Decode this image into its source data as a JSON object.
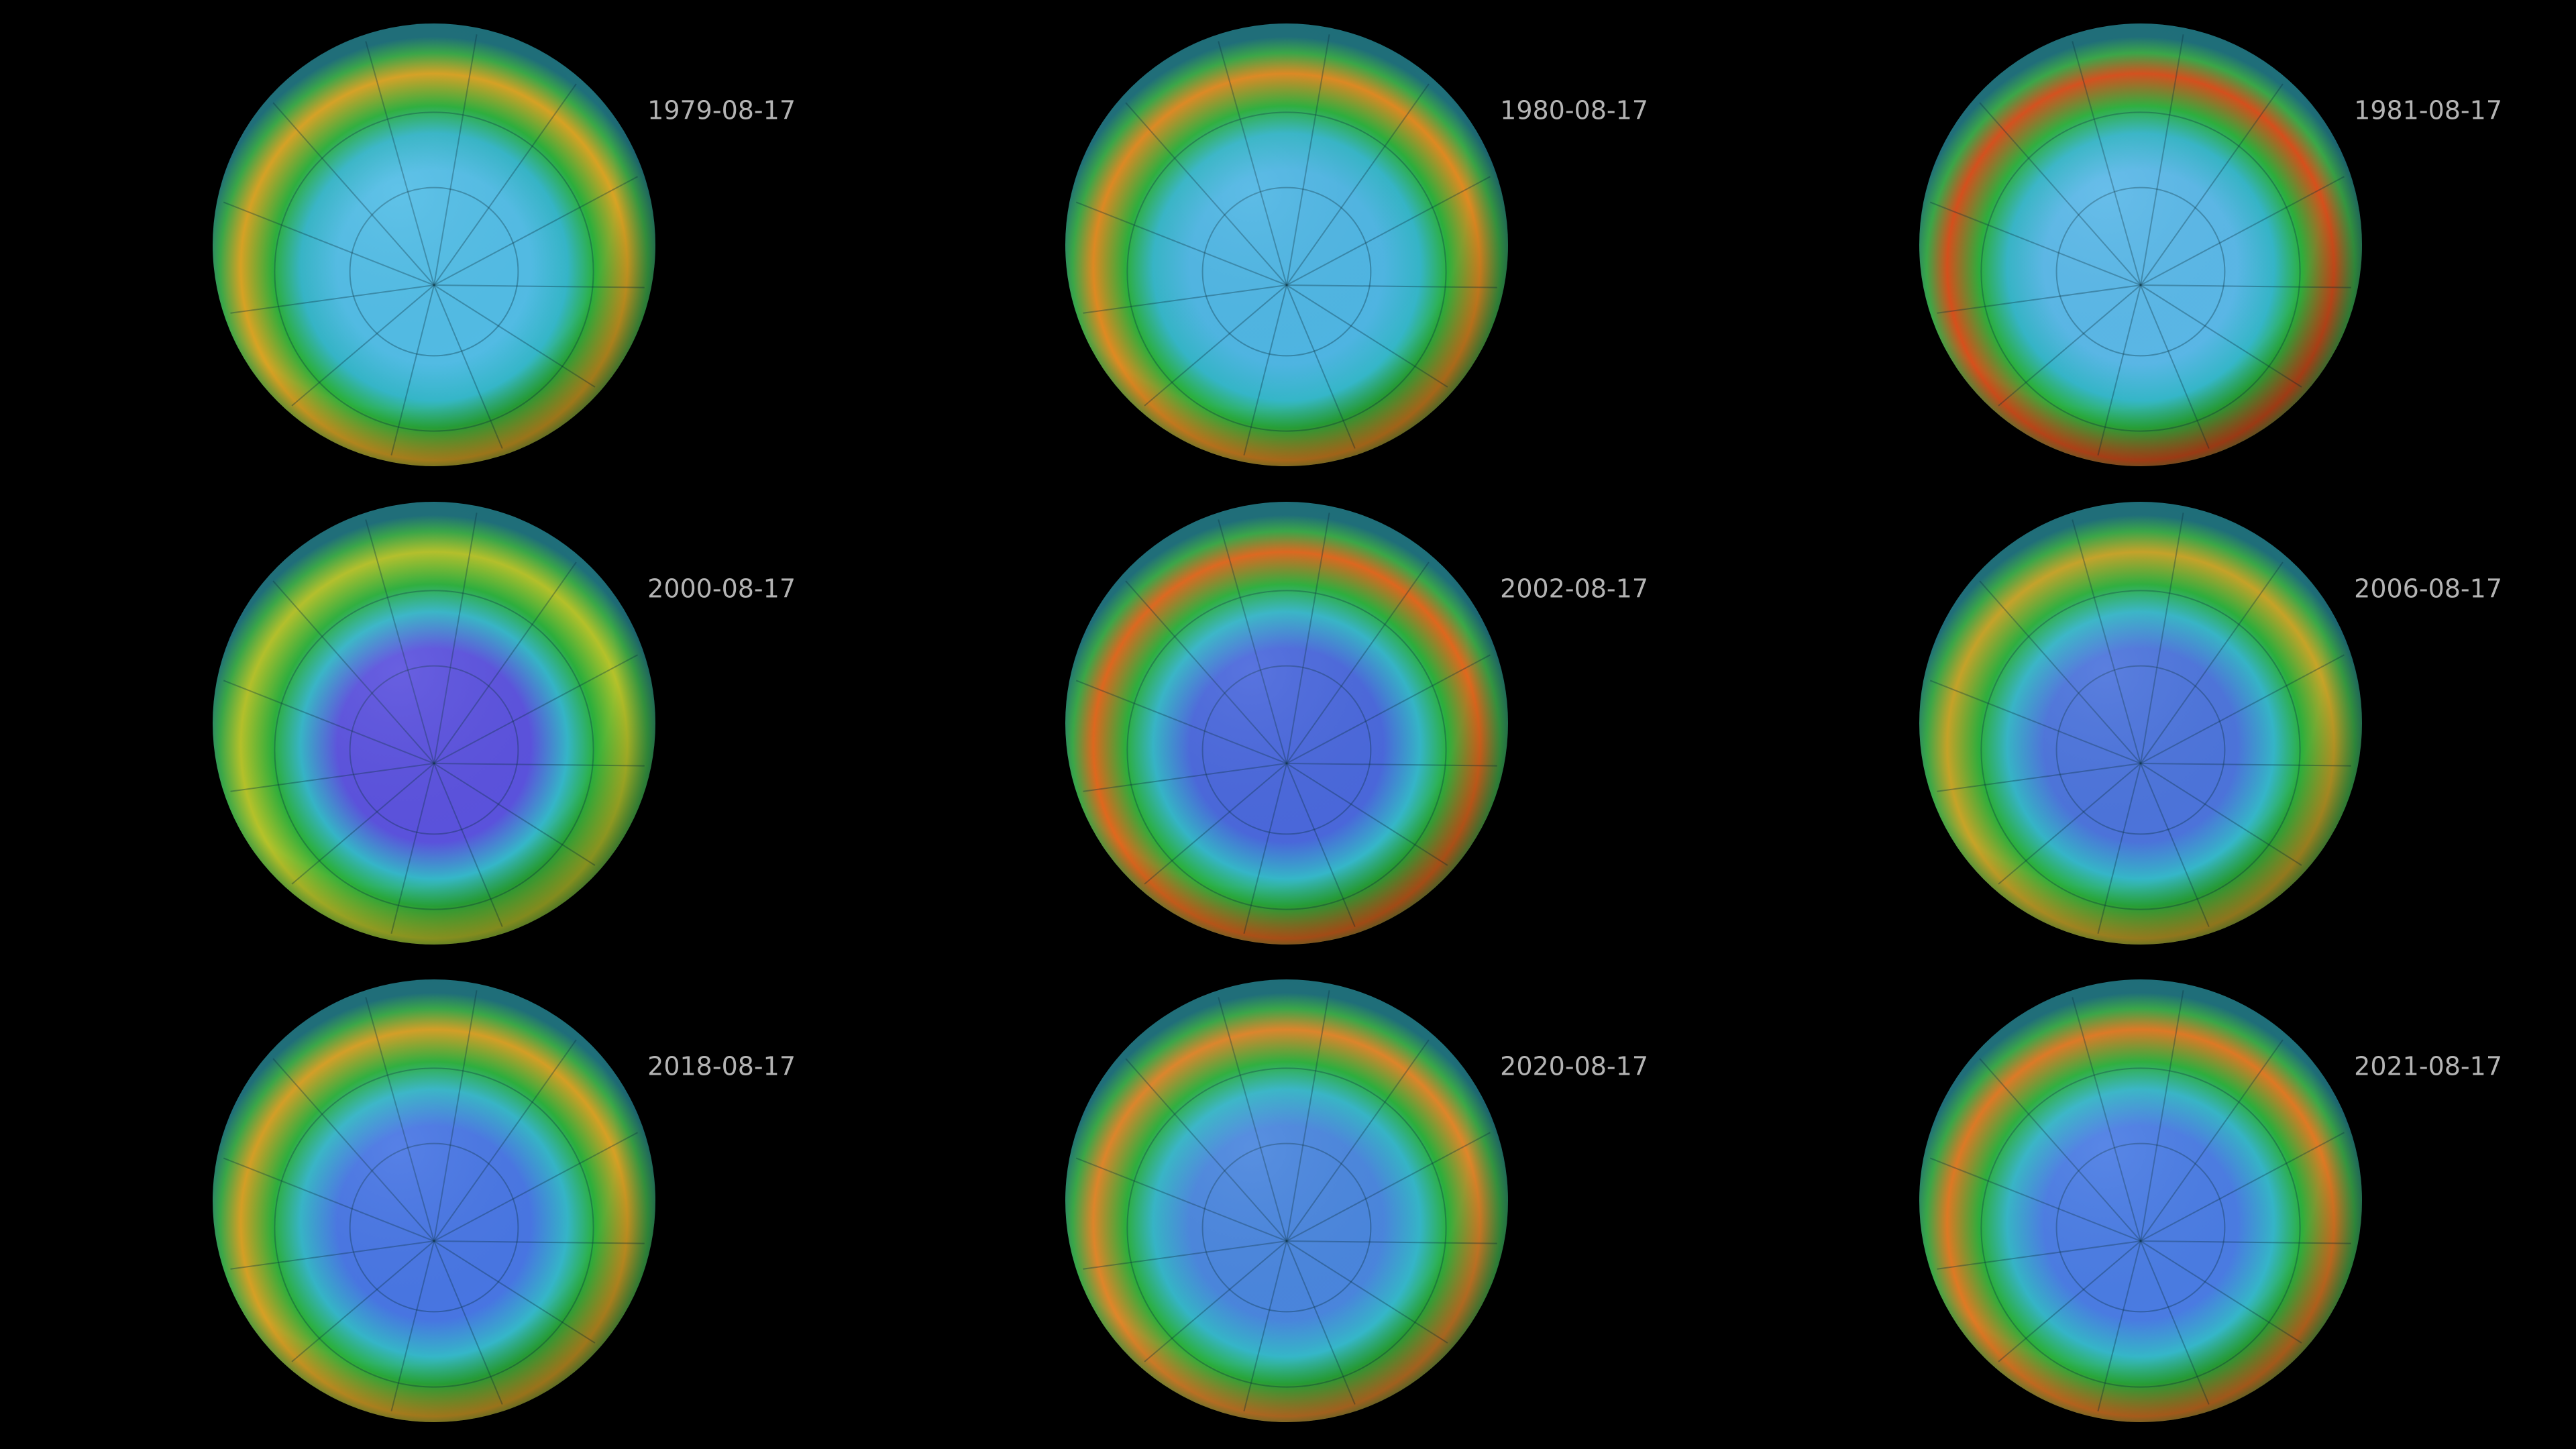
{
  "panels": [
    {
      "date": "1979-08-17"
    },
    {
      "date": "1980-08-17"
    },
    {
      "date": "1981-08-17"
    },
    {
      "date": "2000-08-17"
    },
    {
      "date": "2002-08-17"
    },
    {
      "date": "2006-08-17"
    },
    {
      "date": "2018-08-17"
    },
    {
      "date": "2020-08-17"
    },
    {
      "date": "2021-08-17"
    }
  ]
}
